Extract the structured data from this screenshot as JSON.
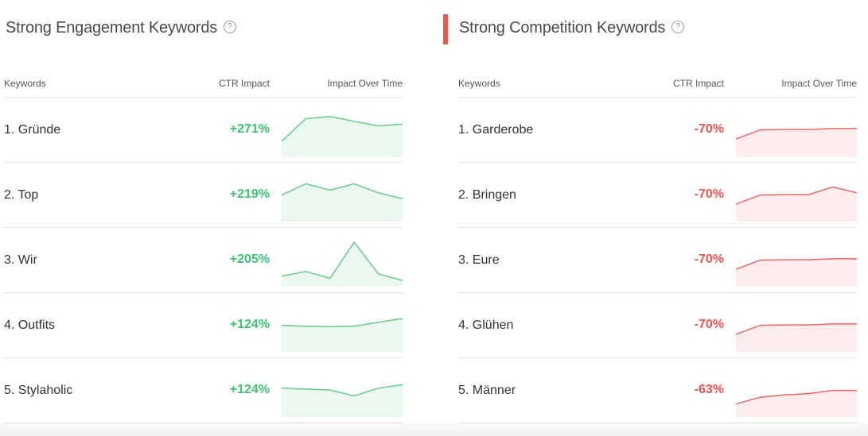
{
  "engagement": {
    "title": "Strong Engagement Keywords",
    "help": "?",
    "columns": {
      "keyword": "Keywords",
      "ctr": "CTR Impact",
      "time": "Impact Over Time"
    },
    "line_color": "#66cc88",
    "fill_color": "#eaf8ef",
    "rows": [
      {
        "keyword": "1. Gründe",
        "ctr": "+271%",
        "trend": [
          0.3,
          0.8,
          0.85,
          0.74,
          0.64,
          0.68
        ]
      },
      {
        "keyword": "2. Top",
        "ctr": "+219%",
        "trend": [
          0.55,
          0.8,
          0.66,
          0.8,
          0.6,
          0.47
        ]
      },
      {
        "keyword": "3. Wir",
        "ctr": "+205%",
        "trend": [
          0.2,
          0.3,
          0.15,
          0.95,
          0.25,
          0.1
        ]
      },
      {
        "keyword": "4. Outfits",
        "ctr": "+124%",
        "trend": [
          0.55,
          0.53,
          0.52,
          0.53,
          0.62,
          0.7
        ]
      },
      {
        "keyword": "5. Stylaholic",
        "ctr": "+124%",
        "trend": [
          0.6,
          0.58,
          0.56,
          0.43,
          0.6,
          0.68
        ]
      }
    ]
  },
  "competition": {
    "title": "Strong Competition Keywords",
    "help": "?",
    "accent_color": "#ef5350",
    "columns": {
      "keyword": "Keywords",
      "ctr": "CTR Impact",
      "time": "Impact Over Time"
    },
    "line_color": "#ee6666",
    "fill_color": "#fdecec",
    "rows": [
      {
        "keyword": "1. Garderobe",
        "ctr": "-70%",
        "trend": [
          0.35,
          0.55,
          0.56,
          0.56,
          0.58,
          0.58
        ]
      },
      {
        "keyword": "2. Bringen",
        "ctr": "-70%",
        "trend": [
          0.35,
          0.55,
          0.56,
          0.56,
          0.73,
          0.6
        ]
      },
      {
        "keyword": "3. Eure",
        "ctr": "-70%",
        "trend": [
          0.35,
          0.55,
          0.56,
          0.56,
          0.58,
          0.58
        ]
      },
      {
        "keyword": "4. Glühen",
        "ctr": "-70%",
        "trend": [
          0.35,
          0.55,
          0.56,
          0.56,
          0.58,
          0.58
        ]
      },
      {
        "keyword": "5. Männer",
        "ctr": "-63%",
        "trend": [
          0.25,
          0.4,
          0.45,
          0.48,
          0.55,
          0.55
        ]
      }
    ]
  }
}
